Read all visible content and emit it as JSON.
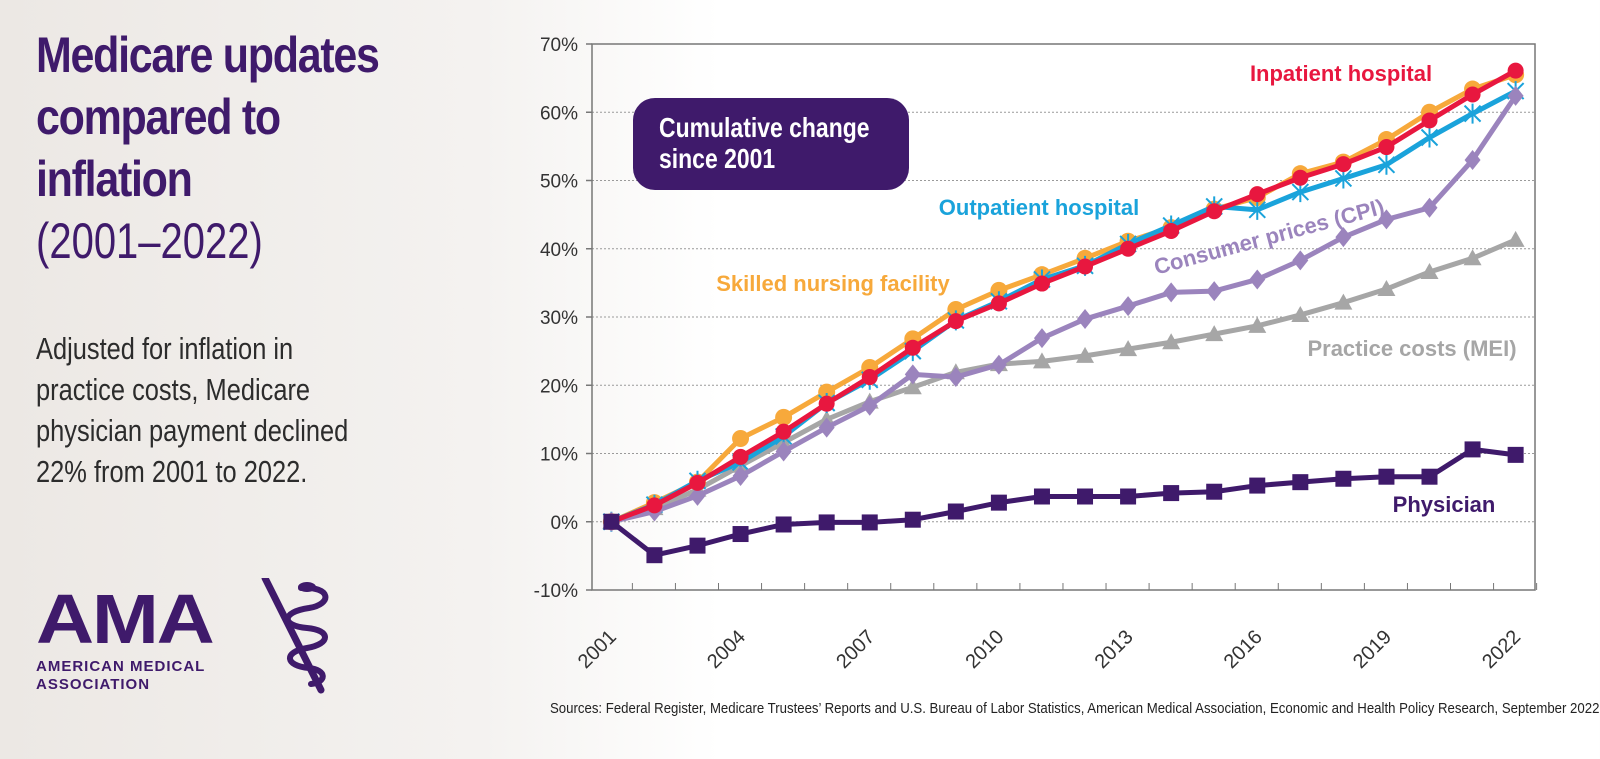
{
  "title": {
    "line1": "Medicare updates",
    "line2": "compared to",
    "line3": "inflation",
    "line4": "(2001–2022)"
  },
  "description": "Adjusted for inflation in practice costs, Medicare physician payment declined 22% from 2001 to 2022.",
  "logo": {
    "acronym": "AMA",
    "line1": "AMERICAN MEDICAL",
    "line2": "ASSOCIATION"
  },
  "sources": "Sources: Federal Register, Medicare Trustees’ Reports and U.S. Bureau of Labor Statistics, American Medical Association, Economic and Health Policy Research, September 2022.",
  "colors": {
    "brand_purple": "#3f1a6b",
    "inpatient": "#e8173f",
    "outpatient": "#1aa3db",
    "snf": "#f7a93b",
    "cpi": "#9b84bd",
    "mei": "#a6a6a6",
    "physician": "#3f1a6b"
  },
  "chart_data": {
    "type": "line",
    "title": "Cumulative change since 2001",
    "callout_line1": "Cumulative change",
    "callout_line2": "since 2001",
    "xlabel": "",
    "ylabel": "",
    "ylim": [
      -10,
      70
    ],
    "ytick_values": [
      -10,
      0,
      10,
      20,
      30,
      40,
      50,
      60,
      70
    ],
    "ytick_labels": [
      "-10%",
      "0%",
      "10%",
      "20%",
      "30%",
      "40%",
      "50%",
      "60%",
      "70%"
    ],
    "x": [
      2001,
      2002,
      2003,
      2004,
      2005,
      2006,
      2007,
      2008,
      2009,
      2010,
      2011,
      2012,
      2013,
      2014,
      2015,
      2016,
      2017,
      2018,
      2019,
      2020,
      2021,
      2022
    ],
    "xtick_labels": [
      "2001",
      "2004",
      "2007",
      "2010",
      "2013",
      "2016",
      "2019",
      "2022"
    ],
    "xtick_values": [
      2001,
      2004,
      2007,
      2010,
      2013,
      2016,
      2019,
      2022
    ],
    "grid": true,
    "series": [
      {
        "key": "snf",
        "name": "Skilled nursing facility",
        "marker": "circle",
        "values": [
          0,
          2.8,
          5.8,
          12.2,
          15.3,
          19,
          22.6,
          26.8,
          31.1,
          33.9,
          36.2,
          38.6,
          41.1,
          43.1,
          45.8,
          47.5,
          51,
          52.7,
          56,
          60,
          63.4,
          65.5
        ]
      },
      {
        "key": "outpatient",
        "name": "Outpatient hospital",
        "marker": "x",
        "values": [
          0,
          2.5,
          6,
          8.7,
          12.5,
          17.4,
          20.8,
          25,
          29.5,
          32.3,
          35.5,
          37.5,
          40.7,
          43.4,
          46.2,
          45.7,
          48.3,
          50.3,
          52.3,
          56.3,
          59.8,
          63.1
        ]
      },
      {
        "key": "inpatient",
        "name": "Inpatient hospital",
        "marker": "circle",
        "values": [
          0,
          2.4,
          5.7,
          9.5,
          13.2,
          17.3,
          21.2,
          25.5,
          29.4,
          32,
          34.9,
          37.4,
          40,
          42.6,
          45.5,
          48,
          50.4,
          52.4,
          54.9,
          58.8,
          62.6,
          66.1
        ]
      },
      {
        "key": "cpi",
        "name": "Consumer prices (CPI)",
        "marker": "diamond",
        "values": [
          0,
          1.5,
          3.8,
          6.7,
          10.3,
          13.8,
          17,
          21.6,
          21.2,
          23,
          26.9,
          29.7,
          31.6,
          33.6,
          33.8,
          35.5,
          38.3,
          41.7,
          44.3,
          46,
          53,
          62.4
        ]
      },
      {
        "key": "mei",
        "name": "Practice costs (MEI)",
        "marker": "triangle",
        "values": [
          0,
          2,
          4.7,
          8.2,
          11.6,
          15,
          17.6,
          19.7,
          21.9,
          23.1,
          23.5,
          24.3,
          25.3,
          26.3,
          27.5,
          28.7,
          30.3,
          32.1,
          34.1,
          36.6,
          38.6,
          41.3
        ]
      },
      {
        "key": "physician",
        "name": "Physician",
        "marker": "square",
        "values": [
          0,
          -4.9,
          -3.5,
          -1.8,
          -0.4,
          -0.1,
          -0.1,
          0.3,
          1.5,
          2.8,
          3.7,
          3.7,
          3.7,
          4.2,
          4.4,
          5.3,
          5.8,
          6.3,
          6.6,
          6.6,
          10.6,
          9.8
        ]
      }
    ]
  }
}
